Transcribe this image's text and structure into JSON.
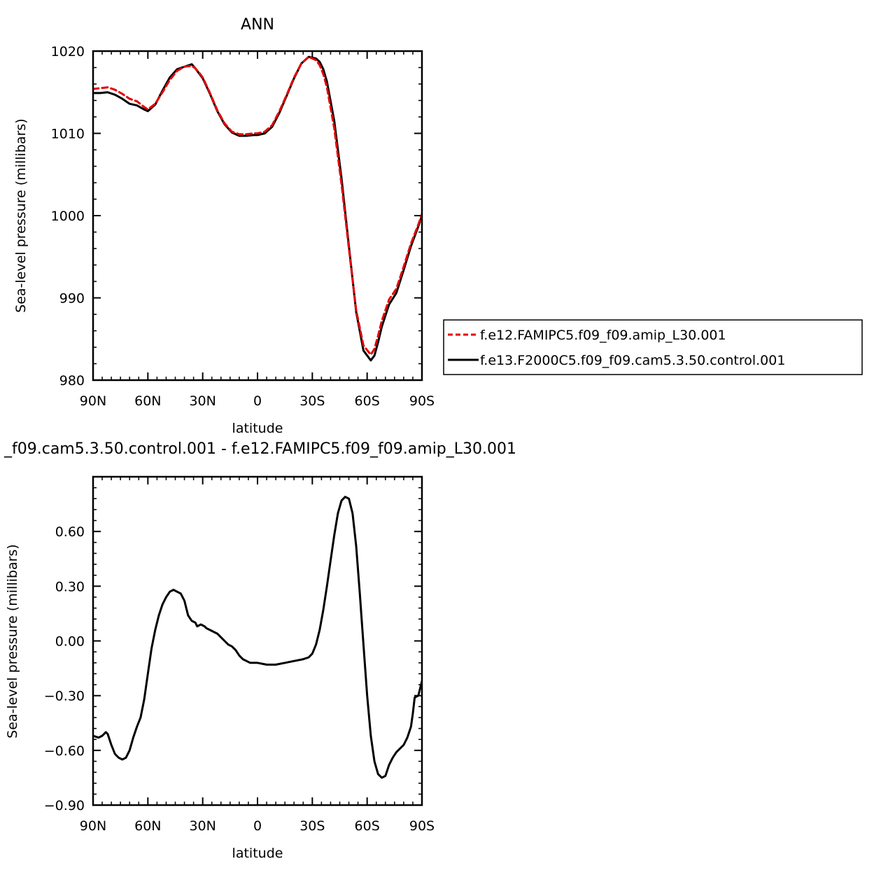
{
  "chart_data": [
    {
      "type": "line",
      "title": "ANN",
      "xlabel": "latitude",
      "ylabel": "Sea-level pressure (millibars)",
      "xlim": [
        -90,
        90
      ],
      "ylim": [
        980,
        1020
      ],
      "xticks": [
        -90,
        -60,
        -30,
        0,
        30,
        60,
        90
      ],
      "xtick_labels": [
        "90N",
        "60N",
        "30N",
        "0",
        "30S",
        "60S",
        "90S"
      ],
      "yticks": [
        980,
        990,
        1000,
        1010,
        1020
      ],
      "ytick_labels": [
        "980",
        "990",
        "1000",
        "1010",
        "1020"
      ],
      "legend_position": "right",
      "series": [
        {
          "name": "f.e12.FAMIPC5.f09_f09.amip_L30.001",
          "color": "#e60000",
          "style": "dashed",
          "x": [
            -90,
            -86,
            -82,
            -78,
            -74,
            -70,
            -66,
            -62,
            -60,
            -56,
            -52,
            -48,
            -44,
            -40,
            -36,
            -34,
            -32,
            -30,
            -26,
            -22,
            -18,
            -14,
            -10,
            -6,
            -2,
            0,
            4,
            8,
            12,
            16,
            20,
            24,
            28,
            32,
            34,
            36,
            38,
            42,
            46,
            50,
            54,
            58,
            62,
            64,
            66,
            68,
            72,
            76,
            80,
            84,
            88,
            90
          ],
          "y": [
            1015.4,
            1015.5,
            1015.6,
            1015.3,
            1014.8,
            1014.2,
            1013.9,
            1013.2,
            1012.9,
            1013.6,
            1015.0,
            1016.5,
            1017.6,
            1018.1,
            1018.2,
            1017.9,
            1017.4,
            1016.8,
            1014.9,
            1012.8,
            1011.2,
            1010.2,
            1009.9,
            1009.9,
            1010.0,
            1010.0,
            1010.2,
            1011.0,
            1012.7,
            1014.7,
            1016.8,
            1018.5,
            1019.3,
            1018.9,
            1018.3,
            1017.2,
            1015.6,
            1010.6,
            1003.8,
            996.0,
            988.5,
            984.2,
            983.1,
            983.8,
            985.4,
            987.2,
            989.8,
            991.1,
            993.8,
            996.6,
            998.9,
            1000.2
          ]
        },
        {
          "name": "f.e13.F2000C5.f09_f09.cam5.3.50.control.001",
          "color": "#000000",
          "style": "solid",
          "x": [
            -90,
            -86,
            -82,
            -78,
            -74,
            -70,
            -66,
            -62,
            -60,
            -56,
            -52,
            -48,
            -44,
            -40,
            -36,
            -34,
            -32,
            -30,
            -26,
            -22,
            -18,
            -14,
            -10,
            -6,
            -2,
            0,
            4,
            8,
            12,
            16,
            20,
            24,
            28,
            32,
            34,
            36,
            38,
            42,
            46,
            50,
            54,
            58,
            62,
            64,
            66,
            68,
            72,
            76,
            80,
            84,
            88,
            90
          ],
          "y": [
            1014.9,
            1014.9,
            1015.0,
            1014.7,
            1014.2,
            1013.6,
            1013.4,
            1012.9,
            1012.7,
            1013.5,
            1015.2,
            1016.8,
            1017.8,
            1018.1,
            1018.4,
            1017.9,
            1017.3,
            1016.7,
            1014.8,
            1012.7,
            1011.1,
            1010.1,
            1009.7,
            1009.7,
            1009.8,
            1009.8,
            1010.0,
            1010.8,
            1012.5,
            1014.6,
            1016.7,
            1018.5,
            1019.3,
            1019.1,
            1018.7,
            1017.8,
            1016.3,
            1011.5,
            1004.5,
            996.3,
            988.3,
            983.6,
            982.4,
            983.0,
            984.6,
            986.5,
            989.2,
            990.6,
            993.4,
            996.3,
            998.7,
            1000.0
          ]
        }
      ]
    },
    {
      "type": "line",
      "title": "_f09.cam5.3.50.control.001 - f.e12.FAMIPC5.f09_f09.amip_L30.001",
      "xlabel": "latitude",
      "ylabel": "Sea-level pressure (millibars)",
      "xlim": [
        -90,
        90
      ],
      "ylim": [
        -0.9,
        0.9
      ],
      "xticks": [
        -90,
        -60,
        -30,
        0,
        30,
        60,
        90
      ],
      "xtick_labels": [
        "90N",
        "60N",
        "30N",
        "0",
        "30S",
        "60S",
        "90S"
      ],
      "yticks": [
        -0.9,
        -0.6,
        -0.3,
        0.0,
        0.3,
        0.6
      ],
      "ytick_labels": [
        "-0.90",
        "-0.60",
        "-0.30",
        "0.00",
        "0.30",
        "0.60"
      ],
      "series": [
        {
          "color": "#000000",
          "style": "solid",
          "x": [
            -90,
            -87,
            -85,
            -83,
            -82,
            -80,
            -78,
            -76,
            -74,
            -72,
            -70,
            -68,
            -66,
            -64,
            -62,
            -60,
            -58,
            -56,
            -54,
            -52,
            -50,
            -48,
            -46,
            -44,
            -42,
            -40,
            -38,
            -36,
            -34,
            -33,
            -31,
            -29,
            -28,
            -26,
            -24,
            -22,
            -20,
            -18,
            -16,
            -14,
            -12,
            -10,
            -8,
            -6,
            -4,
            -2,
            0,
            5,
            10,
            15,
            20,
            25,
            28,
            30,
            32,
            34,
            36,
            38,
            40,
            42,
            44,
            46,
            48,
            50,
            52,
            54,
            56,
            58,
            60,
            62,
            64,
            66,
            68,
            70,
            72,
            74,
            76,
            78,
            80,
            82,
            84,
            85,
            86,
            88,
            90
          ],
          "y": [
            -0.52,
            -0.53,
            -0.52,
            -0.5,
            -0.51,
            -0.57,
            -0.62,
            -0.64,
            -0.65,
            -0.64,
            -0.6,
            -0.53,
            -0.47,
            -0.42,
            -0.32,
            -0.18,
            -0.04,
            0.06,
            0.14,
            0.2,
            0.24,
            0.27,
            0.28,
            0.27,
            0.26,
            0.22,
            0.14,
            0.11,
            0.1,
            0.08,
            0.09,
            0.08,
            0.07,
            0.06,
            0.05,
            0.04,
            0.02,
            0.0,
            -0.02,
            -0.03,
            -0.05,
            -0.08,
            -0.1,
            -0.11,
            -0.12,
            -0.12,
            -0.12,
            -0.13,
            -0.13,
            -0.12,
            -0.11,
            -0.1,
            -0.09,
            -0.07,
            -0.02,
            0.06,
            0.17,
            0.3,
            0.44,
            0.58,
            0.7,
            0.77,
            0.79,
            0.78,
            0.7,
            0.52,
            0.26,
            -0.02,
            -0.3,
            -0.52,
            -0.66,
            -0.73,
            -0.75,
            -0.74,
            -0.68,
            -0.64,
            -0.61,
            -0.59,
            -0.57,
            -0.53,
            -0.47,
            -0.4,
            -0.31,
            -0.3,
            -0.22
          ]
        }
      ]
    }
  ]
}
